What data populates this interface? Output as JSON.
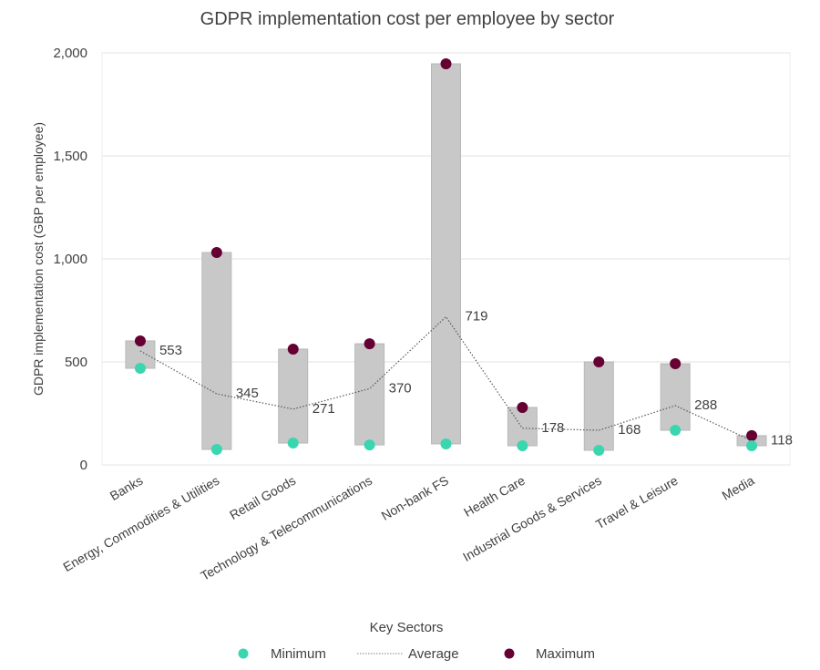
{
  "chart_data": {
    "type": "floating-bar-with-line",
    "title": "GDPR implementation cost per employee by sector",
    "xlabel": "Key Sectors",
    "ylabel": "GDPR implementation cost (GBP per employee)",
    "ylim": [
      0,
      2000
    ],
    "yticks": [
      0,
      500,
      1000,
      1500,
      2000
    ],
    "ytick_labels": [
      "0",
      "500",
      "1,000",
      "1,500",
      "2,000"
    ],
    "grid": true,
    "legend_position": "bottom",
    "categories": [
      "Banks",
      "Energy, Commodities & Utilities",
      "Retail Goods",
      "Technology & Telecommunications",
      "Non-bank FS",
      "Health Care",
      "Industrial Goods & Services",
      "Travel & Leisure",
      "Media"
    ],
    "series": [
      {
        "name": "Minimum",
        "marker": "circle",
        "color": "#3ad6b0",
        "values": [
          469,
          75,
          106,
          97,
          102,
          93,
          71,
          168,
          93
        ]
      },
      {
        "name": "Average",
        "style": "dotted-line",
        "color": "#595959",
        "values": [
          553,
          345,
          271,
          370,
          719,
          178,
          168,
          288,
          118
        ],
        "data_labels": [
          "553",
          "345",
          "271",
          "370",
          "719",
          "178",
          "168",
          "288",
          "118"
        ]
      },
      {
        "name": "Maximum",
        "marker": "circle",
        "color": "#660033",
        "values": [
          602,
          1031,
          562,
          588,
          1947,
          279,
          500,
          491,
          142
        ]
      }
    ],
    "range_bar_color": "#c8c8c8",
    "legend": [
      {
        "label": "Minimum",
        "kind": "dot",
        "color": "#3ad6b0"
      },
      {
        "label": "Average",
        "kind": "dotted-line",
        "color": "#808080"
      },
      {
        "label": "Maximum",
        "kind": "dot",
        "color": "#660033"
      }
    ]
  }
}
